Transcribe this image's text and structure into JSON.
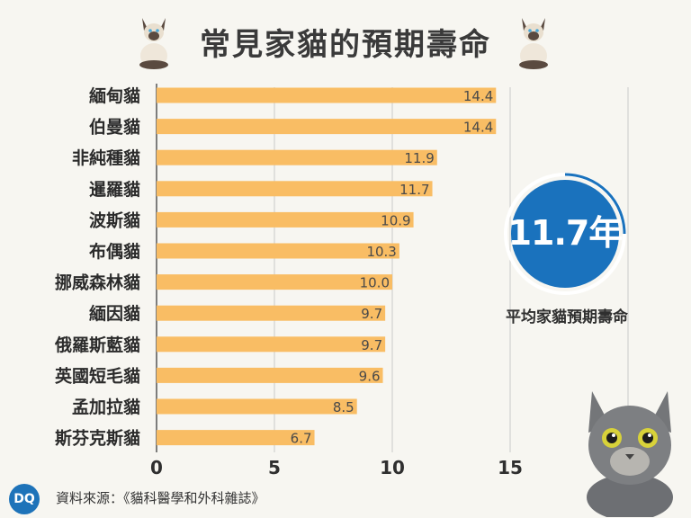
{
  "header": {
    "title": "常見家貓的預期壽命"
  },
  "badge": {
    "value": "11.7年",
    "label": "平均家貓預期壽命"
  },
  "source": {
    "text": "資料來源：《貓科醫學和外科雜誌》"
  },
  "logo": {
    "text": "DQ"
  },
  "colors": {
    "bar": "#f9bd64",
    "circle": "#1a72bd",
    "grid": "#c9c9c9",
    "text": "#2f2f2f"
  },
  "chart_data": {
    "type": "bar",
    "orientation": "horizontal",
    "categories": [
      "緬甸貓",
      "伯曼貓",
      "非純種貓",
      "暹羅貓",
      "波斯貓",
      "布偶貓",
      "挪威森林貓",
      "緬因貓",
      "俄羅斯藍貓",
      "英國短毛貓",
      "孟加拉貓",
      "斯芬克斯貓"
    ],
    "values": [
      14.4,
      14.4,
      11.9,
      11.7,
      10.9,
      10.3,
      10.0,
      9.7,
      9.7,
      9.6,
      8.5,
      6.7
    ],
    "value_labels": [
      "14.4",
      "14.4",
      "11.9",
      "11.7",
      "10.9",
      "10.3",
      "10.0",
      "9.7",
      "9.7",
      "9.6",
      "8.5",
      "6.7"
    ],
    "xlim": [
      0,
      20
    ],
    "xticks": [
      "0",
      "5",
      "10",
      "15"
    ],
    "xtick_values": [
      0,
      5,
      10,
      15
    ],
    "grid": true
  }
}
